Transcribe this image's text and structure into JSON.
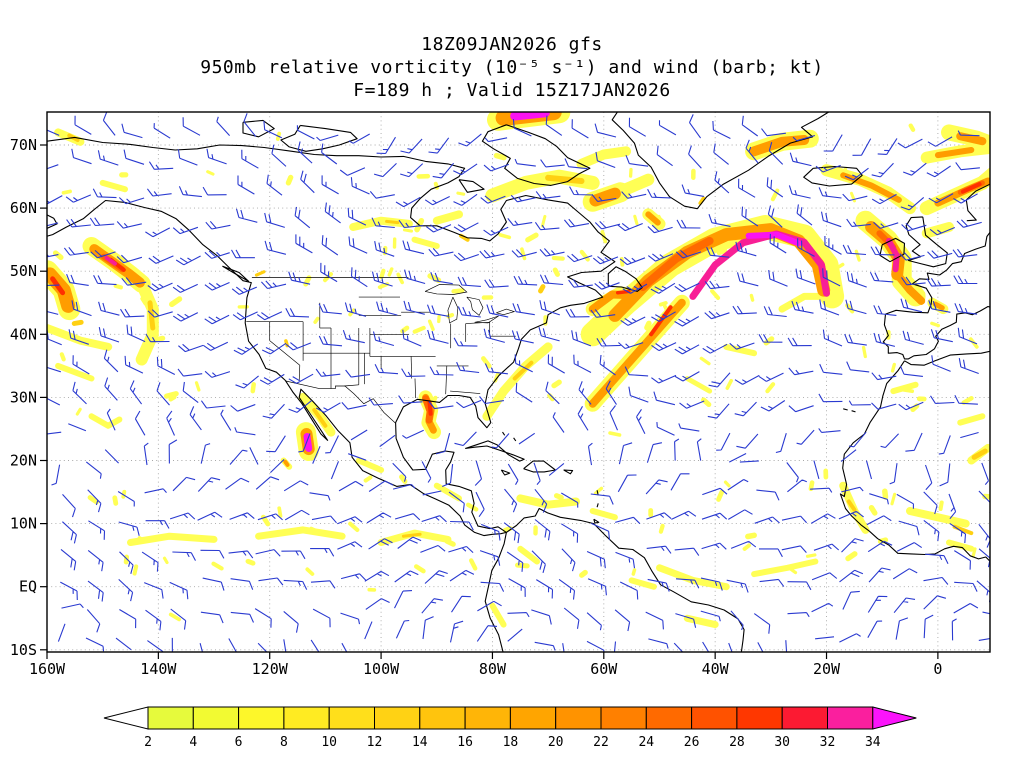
{
  "title": {
    "line1": "18Z09JAN2026 gfs",
    "line2": "950mb relative vorticity (10⁻⁵ s⁻¹) and wind (barb; kt)",
    "line3": "F=189 h ; Valid 15Z17JAN2026"
  },
  "chart_data": {
    "type": "heatmap",
    "model_run": "18Z09JAN2026 gfs",
    "field": "950mb relative vorticity (10⁻⁵ s⁻¹) and wind (barb; kt)",
    "forecast": "F=189 h ; Valid 15Z17JAN2026",
    "x_axis": {
      "ticks": [
        "160W",
        "140W",
        "120W",
        "100W",
        "80W",
        "60W",
        "40W",
        "20W",
        "0"
      ]
    },
    "y_axis": {
      "ticks": [
        "70N",
        "60N",
        "50N",
        "40N",
        "30N",
        "20N",
        "10N",
        "EQ",
        "10S"
      ]
    },
    "colorbar": {
      "tick_labels": [
        "2",
        "4",
        "6",
        "8",
        "10",
        "12",
        "14",
        "16",
        "18",
        "20",
        "22",
        "24",
        "26",
        "28",
        "30",
        "32",
        "34"
      ],
      "segment_colors": [
        "#e6fa3c",
        "#f2fa32",
        "#fdf72a",
        "#ffeb22",
        "#ffdf1b",
        "#ffd214",
        "#ffc40d",
        "#ffb507",
        "#ffa500",
        "#ff9300",
        "#ff8000",
        "#ff6a00",
        "#ff5200",
        "#ff3700",
        "#fc1a32",
        "#fa1f9e"
      ],
      "left_arrow_color": "#ffffff",
      "right_arrow_color": "#fb14fb"
    },
    "wind_barbs": {
      "color": "#2a3ad0",
      "units": "kt"
    },
    "grid": true
  },
  "colors": {
    "coastline": "#000000",
    "gridline": "#a8a8a8",
    "background": "#ffffff"
  }
}
